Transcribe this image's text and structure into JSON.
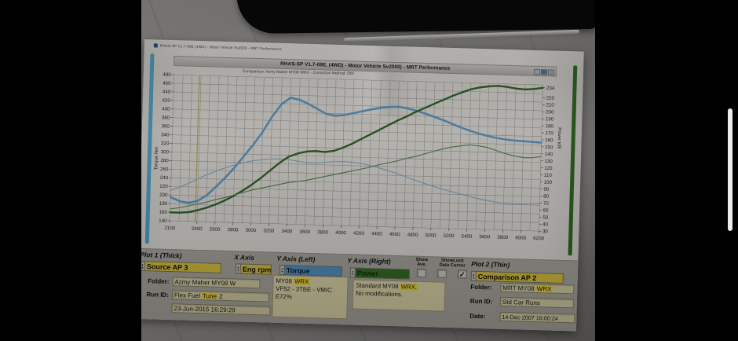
{
  "printout": {
    "window_title": "RHAS-SP V1.7-09E (4WD) - Motor Vehicle Sv2000 - MRT Performance"
  },
  "chart_data": {
    "type": "line",
    "title": "RHAS-SP V1.7-09E, (4WD) - Motor Vehicle Sv2000) - MRT Performance",
    "subtitle": "Comparison: Azmy Maher MY08 WRX - Correction Method: DIN",
    "xlabel": "Eng rpm",
    "ylabel_left": "Torque Nm",
    "ylabel_right": "Power kW",
    "xlim": [
      2100,
      6200
    ],
    "ylim_left": [
      140,
      480
    ],
    "ylim_right": [
      30,
      238
    ],
    "x_ticks": [
      2100,
      2400,
      2600,
      2800,
      3000,
      3200,
      3400,
      3600,
      3800,
      4000,
      4200,
      4400,
      4600,
      4800,
      5000,
      5200,
      5400,
      5600,
      5800,
      6000,
      6200
    ],
    "y_ticks_left": [
      140,
      160,
      180,
      200,
      220,
      240,
      260,
      280,
      300,
      320,
      340,
      360,
      380,
      400,
      420,
      440,
      460,
      480
    ],
    "y_ticks_right": [
      30,
      40,
      50,
      60,
      70,
      80,
      90,
      100,
      110,
      120,
      130,
      140,
      150,
      160,
      170,
      180,
      190,
      200,
      210,
      220,
      234
    ],
    "grid": true,
    "legend": "none",
    "cursor_rpm": 2380,
    "grid_color": "#96938e",
    "cursor_color": "#b3a95c",
    "series": [
      {
        "id": "torque-source-ap3",
        "name": "Torque - Source AP 3 (thick)",
        "axis": "left",
        "color": "#5b94bd",
        "width": 2.6,
        "points": [
          [
            2100,
            195
          ],
          [
            2200,
            186
          ],
          [
            2300,
            183
          ],
          [
            2400,
            188
          ],
          [
            2500,
            202
          ],
          [
            2600,
            222
          ],
          [
            2700,
            244
          ],
          [
            2800,
            268
          ],
          [
            2900,
            295
          ],
          [
            3000,
            322
          ],
          [
            3100,
            352
          ],
          [
            3200,
            388
          ],
          [
            3300,
            418
          ],
          [
            3400,
            434
          ],
          [
            3500,
            430
          ],
          [
            3600,
            421
          ],
          [
            3700,
            410
          ],
          [
            3800,
            399
          ],
          [
            3900,
            395
          ],
          [
            4000,
            397
          ],
          [
            4100,
            402
          ],
          [
            4200,
            407
          ],
          [
            4300,
            412
          ],
          [
            4400,
            416
          ],
          [
            4500,
            419
          ],
          [
            4600,
            420
          ],
          [
            4700,
            417
          ],
          [
            4800,
            412
          ],
          [
            4900,
            406
          ],
          [
            5000,
            399
          ],
          [
            5100,
            392
          ],
          [
            5200,
            384
          ],
          [
            5300,
            376
          ],
          [
            5400,
            369
          ],
          [
            5500,
            363
          ],
          [
            5600,
            358
          ],
          [
            5700,
            354
          ],
          [
            5800,
            351
          ],
          [
            5900,
            349
          ],
          [
            6000,
            348
          ],
          [
            6100,
            347
          ],
          [
            6200,
            346
          ]
        ]
      },
      {
        "id": "torque-comparison-ap2",
        "name": "Torque - Comparison AP 2 (thin)",
        "axis": "left",
        "color": "#7fa7c2",
        "width": 1.2,
        "points": [
          [
            2100,
            211
          ],
          [
            2200,
            219
          ],
          [
            2300,
            229
          ],
          [
            2400,
            240
          ],
          [
            2500,
            250
          ],
          [
            2600,
            259
          ],
          [
            2700,
            267
          ],
          [
            2800,
            274
          ],
          [
            2900,
            280
          ],
          [
            3000,
            285
          ],
          [
            3100,
            288
          ],
          [
            3200,
            290
          ],
          [
            3300,
            291
          ],
          [
            3400,
            290
          ],
          [
            3500,
            287
          ],
          [
            3600,
            284
          ],
          [
            3700,
            284
          ],
          [
            3800,
            286
          ],
          [
            3900,
            288
          ],
          [
            4000,
            289
          ],
          [
            4100,
            288
          ],
          [
            4200,
            286
          ],
          [
            4300,
            282
          ],
          [
            4400,
            277
          ],
          [
            4500,
            271
          ],
          [
            4600,
            265
          ],
          [
            4700,
            258
          ],
          [
            4800,
            251
          ],
          [
            4900,
            244
          ],
          [
            5000,
            238
          ],
          [
            5100,
            232
          ],
          [
            5200,
            227
          ],
          [
            5300,
            222
          ],
          [
            5400,
            217
          ],
          [
            5500,
            212
          ],
          [
            5600,
            208
          ],
          [
            5700,
            205
          ],
          [
            5800,
            203
          ],
          [
            5900,
            202
          ],
          [
            6000,
            202
          ],
          [
            6100,
            203
          ],
          [
            6200,
            204
          ]
        ]
      },
      {
        "id": "power-source-ap3",
        "name": "Power - Source AP 3 (thick)",
        "axis": "right",
        "color": "#2f5f28",
        "width": 2.4,
        "points": [
          [
            2100,
            42
          ],
          [
            2200,
            42
          ],
          [
            2300,
            43
          ],
          [
            2400,
            46
          ],
          [
            2500,
            50
          ],
          [
            2600,
            55
          ],
          [
            2700,
            61
          ],
          [
            2800,
            68
          ],
          [
            2900,
            76
          ],
          [
            3000,
            85
          ],
          [
            3100,
            95
          ],
          [
            3200,
            106
          ],
          [
            3300,
            117
          ],
          [
            3400,
            126
          ],
          [
            3500,
            131
          ],
          [
            3600,
            134
          ],
          [
            3700,
            135
          ],
          [
            3800,
            134
          ],
          [
            3900,
            136
          ],
          [
            4000,
            141
          ],
          [
            4100,
            147
          ],
          [
            4200,
            154
          ],
          [
            4300,
            161
          ],
          [
            4400,
            168
          ],
          [
            4500,
            175
          ],
          [
            4600,
            182
          ],
          [
            4700,
            188
          ],
          [
            4800,
            195
          ],
          [
            4900,
            201
          ],
          [
            5000,
            207
          ],
          [
            5100,
            213
          ],
          [
            5200,
            219
          ],
          [
            5300,
            224
          ],
          [
            5400,
            229
          ],
          [
            5500,
            232
          ],
          [
            5600,
            234
          ],
          [
            5700,
            235
          ],
          [
            5800,
            234
          ],
          [
            5900,
            232
          ],
          [
            6000,
            231
          ],
          [
            6100,
            232
          ],
          [
            6200,
            234
          ]
        ]
      },
      {
        "id": "power-comparison-ap2",
        "name": "Power - Comparison AP 2 (thin)",
        "axis": "right",
        "color": "#5b8553",
        "width": 1.2,
        "points": [
          [
            2100,
            47
          ],
          [
            2200,
            49
          ],
          [
            2300,
            52
          ],
          [
            2400,
            55
          ],
          [
            2500,
            58
          ],
          [
            2600,
            62
          ],
          [
            2700,
            65
          ],
          [
            2800,
            69
          ],
          [
            2900,
            73
          ],
          [
            3000,
            77
          ],
          [
            3100,
            80
          ],
          [
            3200,
            83
          ],
          [
            3300,
            86
          ],
          [
            3400,
            89
          ],
          [
            3500,
            91
          ],
          [
            3600,
            93
          ],
          [
            3700,
            96
          ],
          [
            3800,
            99
          ],
          [
            3900,
            102
          ],
          [
            4000,
            105
          ],
          [
            4100,
            108
          ],
          [
            4200,
            111
          ],
          [
            4300,
            114
          ],
          [
            4400,
            118
          ],
          [
            4500,
            121
          ],
          [
            4600,
            124
          ],
          [
            4700,
            128
          ],
          [
            4800,
            131
          ],
          [
            4900,
            135
          ],
          [
            5000,
            139
          ],
          [
            5100,
            143
          ],
          [
            5200,
            146
          ],
          [
            5300,
            148
          ],
          [
            5400,
            150
          ],
          [
            5500,
            149
          ],
          [
            5600,
            147
          ],
          [
            5700,
            143
          ],
          [
            5800,
            139
          ],
          [
            5900,
            136
          ],
          [
            6000,
            134
          ],
          [
            6100,
            134
          ],
          [
            6200,
            136
          ]
        ]
      }
    ]
  },
  "panel": {
    "headers": {
      "plot1": "Plot 1 (Thick)",
      "xaxis": "X Axis",
      "yleft": "Y Axis (Left)",
      "yright": "Y Axis (Right)",
      "show": "Show",
      "ave": "Ave.",
      "showlock": "ShowLock",
      "datacursor": "Data Cursor",
      "plot2": "Plot 2 (Thin)"
    },
    "dropdowns": {
      "plot1": "Source AP 3",
      "xaxis": "Eng rpm",
      "yleft": "Torque",
      "yright": "Power",
      "plot2": "Comparison AP 2"
    },
    "checkboxes": {
      "show_ave": false,
      "show_data": false,
      "lock_cursor": true
    },
    "left": {
      "folder_label": "Folder:",
      "folder": "Azmy Maher MY08 W",
      "runid_label": "Run ID:",
      "runid_pre": "Flex Fuel ",
      "runid_hl": "Tune",
      "runid_post": " 2",
      "date": "23-Jun-2015  16:29:29"
    },
    "note1": {
      "l1_pre": "MY08 ",
      "l1_hl": "WRX",
      "l2": "VF52 - 3TBE - VMIC",
      "l3": "E72%"
    },
    "note2": {
      "l1_pre": "Standard MY08 ",
      "l1_hl": "WRX.",
      "l2": "No modifications."
    },
    "right": {
      "folder_label": "Folder:",
      "folder_pre": "MRT MY08 ",
      "folder_hl": "WRX",
      "runid_label": "Run ID:",
      "runid": "Std Car Runs",
      "date_label": "Date:",
      "date": "14-Dec-2007  16:00:24"
    }
  },
  "colors": {
    "torque_axis_bar": "#4f9cc2",
    "power_axis_bar": "#2e6420",
    "dropdown_yellow": "#d2bc3e",
    "torque_dropdown": "#4e8fc0",
    "power_dropdown": "#336b22",
    "highlight_yellow": "#e6cf3e"
  }
}
